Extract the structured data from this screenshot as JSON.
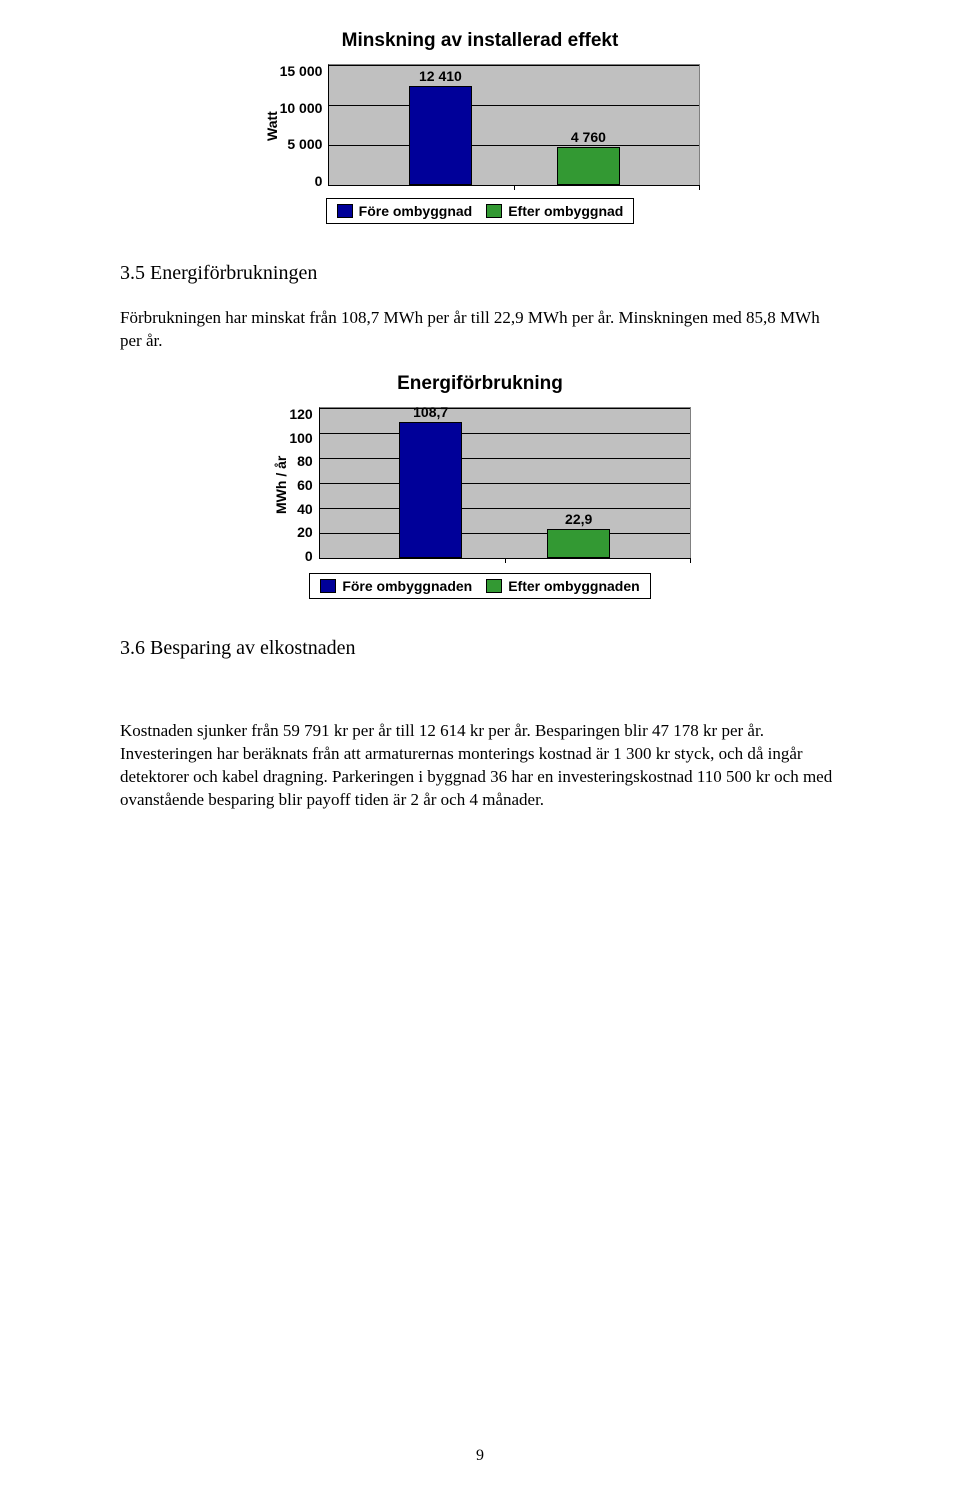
{
  "chart1": {
    "type": "bar",
    "title": "Minskning av installerad effekt",
    "title_fontsize": 19,
    "y_label": "Watt",
    "y_ticks": [
      "15 000",
      "10 000",
      "5 000",
      "0"
    ],
    "ymax": 15000,
    "plot_bg": "#c0c0c0",
    "grid_color": "#000000",
    "bars": [
      {
        "label": "12 410",
        "value": 12410,
        "color": "#000099",
        "x_pct": 30
      },
      {
        "label": "4 760",
        "value": 4760,
        "color": "#339933",
        "x_pct": 70
      }
    ],
    "bar_width_pct": 17,
    "legend": [
      {
        "text": "Före ombyggnad",
        "color": "#000099"
      },
      {
        "text": "Efter ombyggnad",
        "color": "#339933"
      }
    ]
  },
  "section_energi_head": "3.5 Energiförbrukningen",
  "section_energi_body": "Förbrukningen har minskat från 108,7 MWh per år till 22,9 MWh per år. Minskningen med 85,8 MWh per år.",
  "chart2": {
    "type": "bar",
    "title": "Energiförbrukning",
    "title_fontsize": 19,
    "y_label": "MWh / år",
    "y_ticks": [
      "120",
      "100",
      "80",
      "60",
      "40",
      "20",
      "0"
    ],
    "ymax": 120,
    "plot_bg": "#c0c0c0",
    "grid_color": "#000000",
    "bars": [
      {
        "label": "108,7",
        "value": 108.7,
        "color": "#000099",
        "x_pct": 30
      },
      {
        "label": "22,9",
        "value": 22.9,
        "color": "#339933",
        "x_pct": 70
      }
    ],
    "bar_width_pct": 17,
    "legend": [
      {
        "text": "Före ombyggnaden",
        "color": "#000099"
      },
      {
        "text": "Efter ombyggnaden",
        "color": "#339933"
      }
    ]
  },
  "section_bespar_head": "3.6 Besparing av elkostnaden",
  "section_bespar_body": "Kostnaden sjunker från 59 791 kr per år till 12 614 kr per år. Besparingen blir 47 178 kr per år. Investeringen har beräknats från att armaturernas monterings kostnad är 1 300 kr styck, och då ingår detektorer och kabel dragning. Parkeringen i byggnad 36 har en investeringskostnad 110 500 kr och med ovanstående besparing blir payoff tiden är 2 år och 4 månader.",
  "page_number": "9"
}
